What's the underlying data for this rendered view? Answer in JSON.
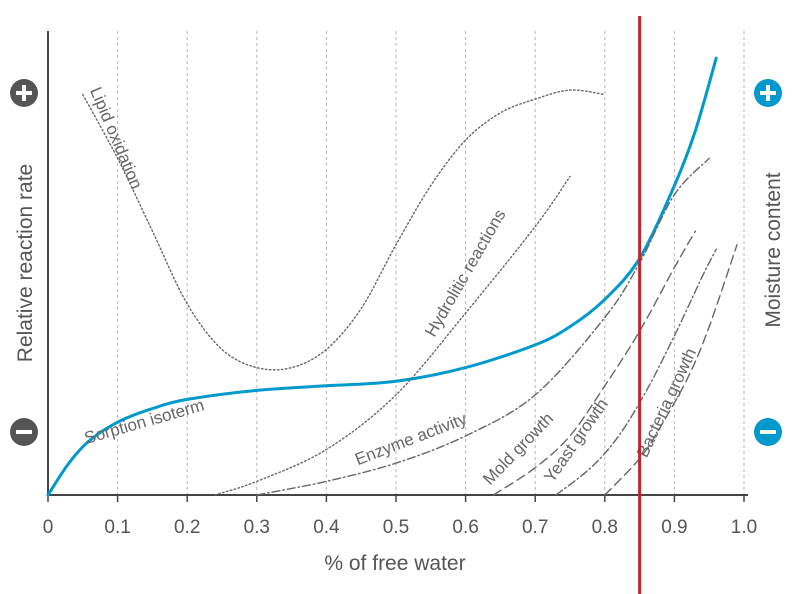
{
  "chart_data": {
    "type": "line",
    "xlabel": "% of free water",
    "ylabel_left": "Relative reaction rate",
    "ylabel_right": "Moisture content",
    "xlim": [
      0,
      1.0
    ],
    "x_ticks": [
      "0",
      "0.1",
      "0.2",
      "0.3",
      "0.4",
      "0.5",
      "0.6",
      "0.7",
      "0.8",
      "0.9",
      "1.0"
    ],
    "grid": "vertical dashed",
    "marker_line": {
      "x": 0.85,
      "color": "#c0272d"
    },
    "left_icons": {
      "top": "plus-icon",
      "bottom": "minus-icon",
      "color": "#555555"
    },
    "right_icons": {
      "top": "plus-icon",
      "bottom": "minus-icon",
      "color": "#0099cc"
    },
    "accent_color": "#0099cc",
    "gray_color": "#666666",
    "series": [
      {
        "name": "Sorption isoterm",
        "style": "solid",
        "color": "#0099cc",
        "points": [
          [
            0,
            0
          ],
          [
            0.03,
            0.07
          ],
          [
            0.06,
            0.12
          ],
          [
            0.1,
            0.16
          ],
          [
            0.15,
            0.19
          ],
          [
            0.2,
            0.21
          ],
          [
            0.3,
            0.23
          ],
          [
            0.4,
            0.24
          ],
          [
            0.5,
            0.25
          ],
          [
            0.6,
            0.28
          ],
          [
            0.7,
            0.33
          ],
          [
            0.75,
            0.37
          ],
          [
            0.8,
            0.43
          ],
          [
            0.85,
            0.52
          ],
          [
            0.9,
            0.68
          ],
          [
            0.93,
            0.8
          ],
          [
            0.96,
            0.96
          ]
        ]
      },
      {
        "name": "Lipid oxidation",
        "style": "dotted",
        "color": "#666666",
        "points": [
          [
            0.05,
            0.88
          ],
          [
            0.1,
            0.74
          ],
          [
            0.15,
            0.58
          ],
          [
            0.2,
            0.42
          ],
          [
            0.25,
            0.32
          ],
          [
            0.3,
            0.28
          ],
          [
            0.35,
            0.28
          ],
          [
            0.4,
            0.32
          ],
          [
            0.45,
            0.41
          ],
          [
            0.5,
            0.55
          ],
          [
            0.55,
            0.68
          ],
          [
            0.6,
            0.78
          ],
          [
            0.65,
            0.84
          ],
          [
            0.7,
            0.87
          ],
          [
            0.75,
            0.89
          ],
          [
            0.8,
            0.88
          ]
        ]
      },
      {
        "name": "Hydrolitic reactions",
        "style": "dotted",
        "color": "#666666",
        "points": [
          [
            0.24,
            0
          ],
          [
            0.3,
            0.03
          ],
          [
            0.4,
            0.1
          ],
          [
            0.5,
            0.22
          ],
          [
            0.6,
            0.4
          ],
          [
            0.7,
            0.59
          ],
          [
            0.75,
            0.7
          ]
        ]
      },
      {
        "name": "Enzyme activity",
        "style": "dash-dot",
        "color": "#666666",
        "points": [
          [
            0.3,
            0
          ],
          [
            0.4,
            0.03
          ],
          [
            0.5,
            0.07
          ],
          [
            0.6,
            0.13
          ],
          [
            0.7,
            0.22
          ],
          [
            0.8,
            0.39
          ],
          [
            0.85,
            0.51
          ],
          [
            0.9,
            0.66
          ],
          [
            0.95,
            0.74
          ]
        ]
      },
      {
        "name": "Mold growth",
        "style": "dashed",
        "color": "#666666",
        "points": [
          [
            0.64,
            0
          ],
          [
            0.7,
            0.06
          ],
          [
            0.75,
            0.13
          ],
          [
            0.8,
            0.24
          ],
          [
            0.85,
            0.36
          ],
          [
            0.9,
            0.5
          ],
          [
            0.93,
            0.58
          ]
        ]
      },
      {
        "name": "Yeast growth",
        "style": "dash-dot",
        "color": "#666666",
        "points": [
          [
            0.73,
            0
          ],
          [
            0.78,
            0.06
          ],
          [
            0.82,
            0.13
          ],
          [
            0.86,
            0.23
          ],
          [
            0.9,
            0.35
          ],
          [
            0.94,
            0.48
          ],
          [
            0.96,
            0.54
          ]
        ]
      },
      {
        "name": "Bacteria growth",
        "style": "dashed",
        "color": "#666666",
        "points": [
          [
            0.8,
            0
          ],
          [
            0.85,
            0.08
          ],
          [
            0.88,
            0.15
          ],
          [
            0.92,
            0.26
          ],
          [
            0.95,
            0.37
          ],
          [
            0.99,
            0.55
          ]
        ]
      }
    ]
  }
}
